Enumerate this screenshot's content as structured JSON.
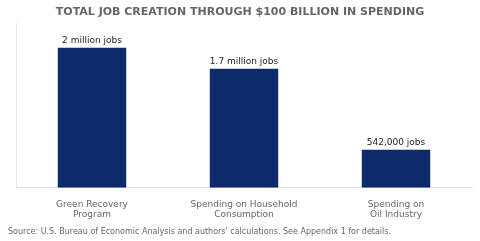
{
  "chart_data": {
    "type": "bar",
    "title": "TOTAL JOB CREATION THROUGH $100 BILLION IN SPENDING",
    "categories": [
      "Green Recovery\nProgram",
      "Spending on Household\nConsumption",
      "Spending on\nOil Industry"
    ],
    "values": [
      2.0,
      1.7,
      0.542
    ],
    "value_labels": [
      "2 million jobs",
      "1.7 million jobs",
      "542,000 jobs"
    ],
    "data_labels": true,
    "color": "#0d2b6b",
    "ylim": [
      0,
      2.35
    ],
    "grid": false,
    "tick_labels": "x",
    "source": "Source: U.S. Bureau of Economic Analysis and authors' calculations. See Appendix 1 for details."
  }
}
